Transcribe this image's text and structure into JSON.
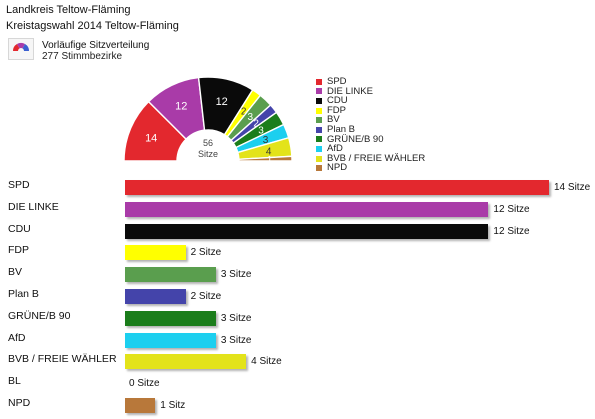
{
  "header": {
    "line1": "Landkreis Teltow-Fläming",
    "line2": "Kreistagswahl 2014 Teltow-Fläming",
    "subtitle": "Vorläufige Sitzverteilung",
    "subtitle2": "277 Stimmbezirke"
  },
  "colors": {
    "value_unit_plural": "Sitze",
    "value_unit_singular": "Sitz"
  },
  "chart_data": [
    {
      "type": "parliament",
      "total_label_value": "56",
      "total_label_unit": "Sitze",
      "total_seats": 56,
      "categories": [
        "SPD",
        "DIE LINKE",
        "CDU",
        "FDP",
        "BV",
        "Plan B",
        "GRÜNE/B 90",
        "AfD",
        "BVB / FREIE WÄHLER",
        "NPD"
      ],
      "values": [
        14,
        12,
        12,
        2,
        3,
        2,
        3,
        3,
        4,
        1
      ],
      "colors": [
        "#e3282e",
        "#a93ba8",
        "#0a0a0a",
        "#ffff00",
        "#5a9e4e",
        "#4444aa",
        "#1b7d1b",
        "#1ccfef",
        "#e3e31a",
        "#b8783a"
      ],
      "legend": [
        "SPD",
        "DIE LINKE",
        "CDU",
        "FDP",
        "BV",
        "Plan B",
        "GRÜNE/B 90",
        "AfD",
        "BVB / FREIE WÄHLER",
        "NPD"
      ],
      "legend_position": "right"
    },
    {
      "type": "bar",
      "orientation": "horizontal",
      "categories": [
        "SPD",
        "DIE LINKE",
        "CDU",
        "FDP",
        "BV",
        "Plan B",
        "GRÜNE/B 90",
        "AfD",
        "BVB / FREIE WÄHLER",
        "BL",
        "NPD"
      ],
      "values": [
        14,
        12,
        12,
        2,
        3,
        2,
        3,
        3,
        4,
        0,
        1
      ],
      "value_labels": [
        "14 Sitze",
        "12 Sitze",
        "12 Sitze",
        "2 Sitze",
        "3 Sitze",
        "2 Sitze",
        "3 Sitze",
        "3 Sitze",
        "4 Sitze",
        "0 Sitze",
        "1 Sitz"
      ],
      "colors": [
        "#e3282e",
        "#a93ba8",
        "#0a0a0a",
        "#ffff00",
        "#5a9e4e",
        "#4444aa",
        "#1b7d1b",
        "#1ccfef",
        "#e3e31a",
        "#cccccc",
        "#b8783a"
      ],
      "xlim": [
        0,
        14
      ]
    }
  ]
}
